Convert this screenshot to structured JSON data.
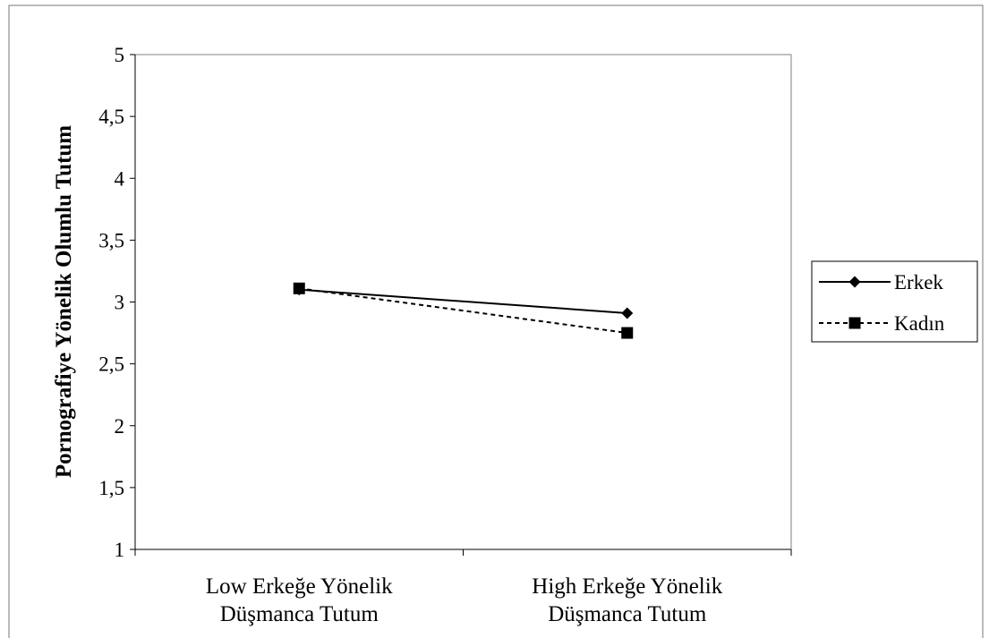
{
  "chart_data": {
    "type": "line",
    "title": "",
    "xlabel": "",
    "ylabel": "Pornografiye Yönelik Olumlu Tutum",
    "categories": [
      [
        "Low Erkeğe Yönelik",
        "Düşmanca Tutum"
      ],
      [
        "High Erkeğe Yönelik",
        "Düşmanca Tutum"
      ]
    ],
    "ylim": [
      1,
      5
    ],
    "yticks": [
      1,
      1.5,
      2,
      2.5,
      3,
      3.5,
      4,
      4.5,
      5
    ],
    "ytick_labels": [
      "1",
      "1,5",
      "2",
      "2,5",
      "3",
      "3,5",
      "4",
      "4,5",
      "5"
    ],
    "grid": false,
    "legend_position": "right",
    "series": [
      {
        "name": "Erkek",
        "values": [
          3.1,
          2.91
        ],
        "marker": "diamond",
        "line": "solid",
        "color": "#000000"
      },
      {
        "name": "Kadın",
        "values": [
          3.11,
          2.75
        ],
        "marker": "square",
        "line": "dashed",
        "color": "#000000"
      }
    ]
  }
}
